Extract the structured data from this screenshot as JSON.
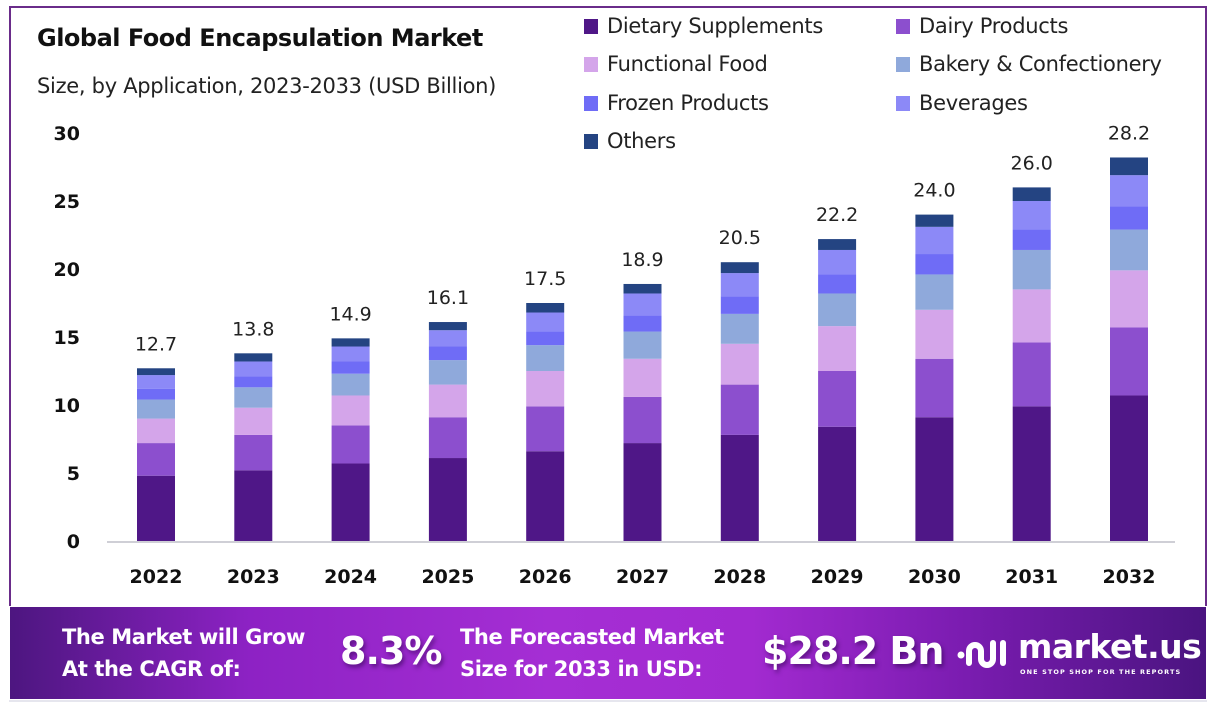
{
  "chart_data": {
    "type": "bar",
    "stacked": true,
    "title": "Global Food Encapsulation Market",
    "subtitle": "Size, by Application, 2023-2033 (USD Billion)",
    "xlabel": "",
    "ylabel": "",
    "ylim": [
      0,
      30
    ],
    "yticks": [
      0,
      5,
      10,
      15,
      20,
      25,
      30
    ],
    "grid": false,
    "legend_position": "top-right",
    "categories": [
      "2022",
      "2023",
      "2024",
      "2025",
      "2026",
      "2027",
      "2028",
      "2029",
      "2030",
      "2031",
      "2032"
    ],
    "totals": [
      12.7,
      13.8,
      14.9,
      16.1,
      17.5,
      18.9,
      20.5,
      22.2,
      24.0,
      26.0,
      28.2
    ],
    "total_labels": [
      "12.7",
      "13.8",
      "14.9",
      "16.1",
      "17.5",
      "18.9",
      "20.5",
      "22.2",
      "24.0",
      "26.0",
      "28.2"
    ],
    "series": [
      {
        "name": "Dietary Supplements",
        "color": "#4f1787",
        "values": [
          4.8,
          5.2,
          5.7,
          6.1,
          6.6,
          7.2,
          7.8,
          8.4,
          9.1,
          9.9,
          10.7
        ]
      },
      {
        "name": "Dairy Products",
        "color": "#8c4fce",
        "values": [
          2.4,
          2.6,
          2.8,
          3.0,
          3.3,
          3.4,
          3.7,
          4.1,
          4.3,
          4.7,
          5.0
        ]
      },
      {
        "name": "Functional Food",
        "color": "#d4a5ea",
        "values": [
          1.8,
          2.0,
          2.2,
          2.4,
          2.6,
          2.8,
          3.0,
          3.3,
          3.6,
          3.9,
          4.2
        ]
      },
      {
        "name": "Bakery & Confectionery",
        "color": "#8fa9db",
        "values": [
          1.4,
          1.5,
          1.6,
          1.8,
          1.9,
          2.0,
          2.2,
          2.4,
          2.6,
          2.9,
          3.0
        ]
      },
      {
        "name": "Frozen Products",
        "color": "#6f6cf6",
        "values": [
          0.8,
          0.8,
          0.9,
          1.0,
          1.0,
          1.2,
          1.3,
          1.4,
          1.5,
          1.5,
          1.7
        ]
      },
      {
        "name": "Beverages",
        "color": "#8c89f7",
        "values": [
          1.0,
          1.1,
          1.1,
          1.2,
          1.4,
          1.6,
          1.7,
          1.8,
          2.0,
          2.1,
          2.3
        ]
      },
      {
        "name": "Others",
        "color": "#244482",
        "values": [
          0.5,
          0.6,
          0.6,
          0.6,
          0.7,
          0.7,
          0.8,
          0.8,
          0.9,
          1.0,
          1.3
        ]
      }
    ]
  },
  "header": {
    "title": "Global Food Encapsulation Market",
    "subtitle": "Size, by Application, 2023-2033 (USD Billion)"
  },
  "banner": {
    "cagr_label_line1": "The Market will Grow",
    "cagr_label_line2": "At the CAGR of:",
    "cagr_value": "8.3%",
    "forecast_label_line1": "The Forecasted Market",
    "forecast_label_line2": "Size for 2033 in USD:",
    "forecast_value": "$28.2 Bn",
    "colors": {
      "gradient_start": "#4d1680",
      "gradient_mid": "#a52ed4",
      "gradient_end": "#4a1480"
    }
  },
  "brand": {
    "name": "market.us",
    "tagline": "ONE STOP SHOP FOR THE REPORTS",
    "icon": "market-us-logo-icon"
  }
}
